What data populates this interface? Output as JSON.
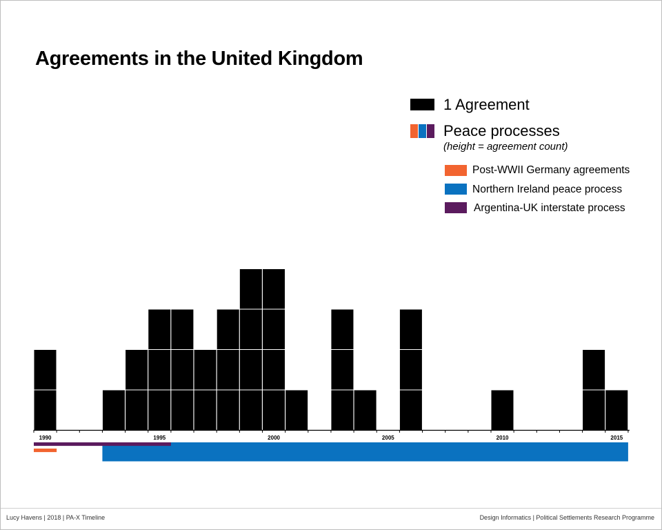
{
  "chart_data": {
    "type": "bar",
    "title": "Agreements in the United Kingdom",
    "unit_label": "1 Agreement",
    "x": [
      1990,
      1991,
      1992,
      1993,
      1994,
      1995,
      1996,
      1997,
      1998,
      1999,
      2000,
      2001,
      2002,
      2003,
      2004,
      2005,
      2006,
      2007,
      2008,
      2009,
      2010,
      2011,
      2012,
      2013,
      2014,
      2015
    ],
    "values": [
      2,
      0,
      0,
      1,
      2,
      3,
      3,
      2,
      3,
      4,
      4,
      1,
      0,
      3,
      1,
      0,
      3,
      0,
      0,
      0,
      1,
      0,
      0,
      0,
      2,
      1
    ],
    "xlim": [
      1990,
      2016
    ],
    "x_ticks": [
      1990,
      1995,
      2000,
      2005,
      2010,
      2015
    ],
    "x_tick_labels": [
      "1990",
      "1995",
      "2000",
      "2005",
      "2010",
      "2015"
    ],
    "peace_processes_label": "Peace processes",
    "peace_processes_note": "(height = agreement count)",
    "peace_processes": [
      {
        "name": "Post-WWII Germany agreements",
        "color": "#f26430",
        "start": 1990,
        "end": 1991,
        "count": 1
      },
      {
        "name": "Northern Ireland peace process",
        "color": "#0a72c0",
        "start": 1993,
        "end": 2016,
        "count": 5
      },
      {
        "name": "Argentina-UK interstate process",
        "color": "#5b1b5e",
        "start": 1990,
        "end": 1996,
        "count": 1
      }
    ]
  },
  "footer": {
    "left": "Lucy Havens  |  2018  |  PA-X Timeline",
    "right": "Design Informatics  |  Political Settlements Research Programme"
  },
  "colors": {
    "bar": "#000000",
    "axis": "#000000"
  }
}
